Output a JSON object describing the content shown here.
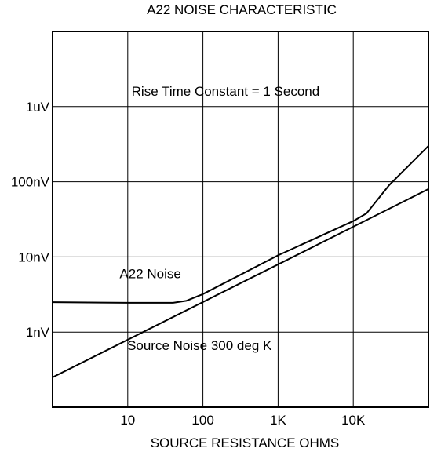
{
  "chart_data": {
    "type": "line",
    "title": "A22 NOISE CHARACTERISTIC",
    "xlabel": "SOURCE RESISTANCE OHMS",
    "ylabel": "",
    "x_scale": "log",
    "y_scale": "log",
    "xlim": [
      1,
      100000
    ],
    "ylim": [
      0.1,
      10000
    ],
    "y_unit": "nV",
    "grid": true,
    "x_ticks": [
      {
        "value": 10,
        "label": "10"
      },
      {
        "value": 100,
        "label": "100"
      },
      {
        "value": 1000,
        "label": "1K"
      },
      {
        "value": 10000,
        "label": "10K"
      }
    ],
    "y_ticks": [
      {
        "value": 1,
        "label": "1nV"
      },
      {
        "value": 10,
        "label": "10nV"
      },
      {
        "value": 100,
        "label": "100nV"
      },
      {
        "value": 1000,
        "label": "1uV"
      }
    ],
    "annotations": [
      {
        "text": "Rise Time Constant = 1 Second",
        "x": 200,
        "y": 1400
      },
      {
        "text": "A22 Noise",
        "x": 20,
        "y": 5.2
      },
      {
        "text": "Source Noise 300 deg K",
        "x": 90,
        "y": 0.58
      }
    ],
    "series": [
      {
        "name": "A22 Noise",
        "x": [
          1,
          10,
          40,
          60,
          100,
          1000,
          10000,
          15000,
          30000,
          100000
        ],
        "y": [
          2.5,
          2.45,
          2.45,
          2.6,
          3.2,
          10.5,
          30,
          38,
          90,
          300
        ]
      },
      {
        "name": "Source Noise 300 deg K",
        "x": [
          1,
          100000
        ],
        "y": [
          0.25,
          80
        ]
      }
    ]
  }
}
